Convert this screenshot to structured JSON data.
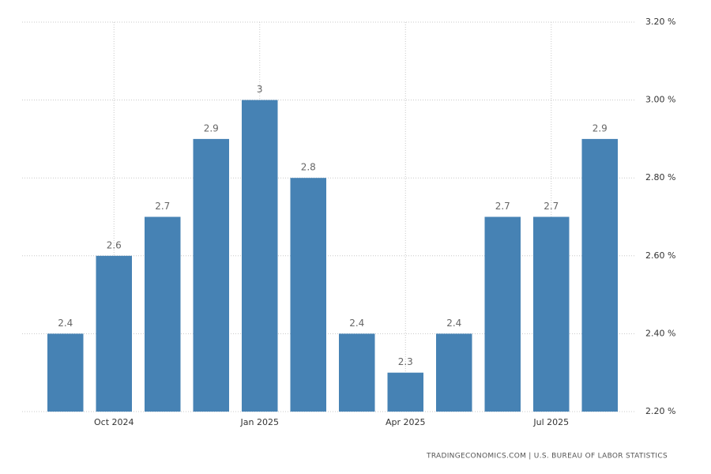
{
  "chart_data": {
    "type": "bar",
    "categories": [
      null,
      "Oct 2024",
      null,
      null,
      "Jan 2025",
      null,
      null,
      "Apr 2025",
      null,
      null,
      "Jul 2025",
      null
    ],
    "values": [
      2.4,
      2.6,
      2.7,
      2.9,
      3,
      2.8,
      2.4,
      2.3,
      2.4,
      2.7,
      2.7,
      2.9
    ],
    "color": "#4682b4",
    "ylim": [
      2.2,
      3.2
    ],
    "yticks": [
      {
        "value": 2.2,
        "label": "2.20 %"
      },
      {
        "value": 2.4,
        "label": "2.40 %"
      },
      {
        "value": 2.6,
        "label": "2.60 %"
      },
      {
        "value": 2.8,
        "label": "2.80 %"
      },
      {
        "value": 3.0,
        "label": "3.00 %"
      },
      {
        "value": 3.2,
        "label": "3.20 %"
      }
    ],
    "grid": true,
    "source": "TRADINGECONOMICS.COM | U.S. BUREAU OF LABOR STATISTICS"
  }
}
